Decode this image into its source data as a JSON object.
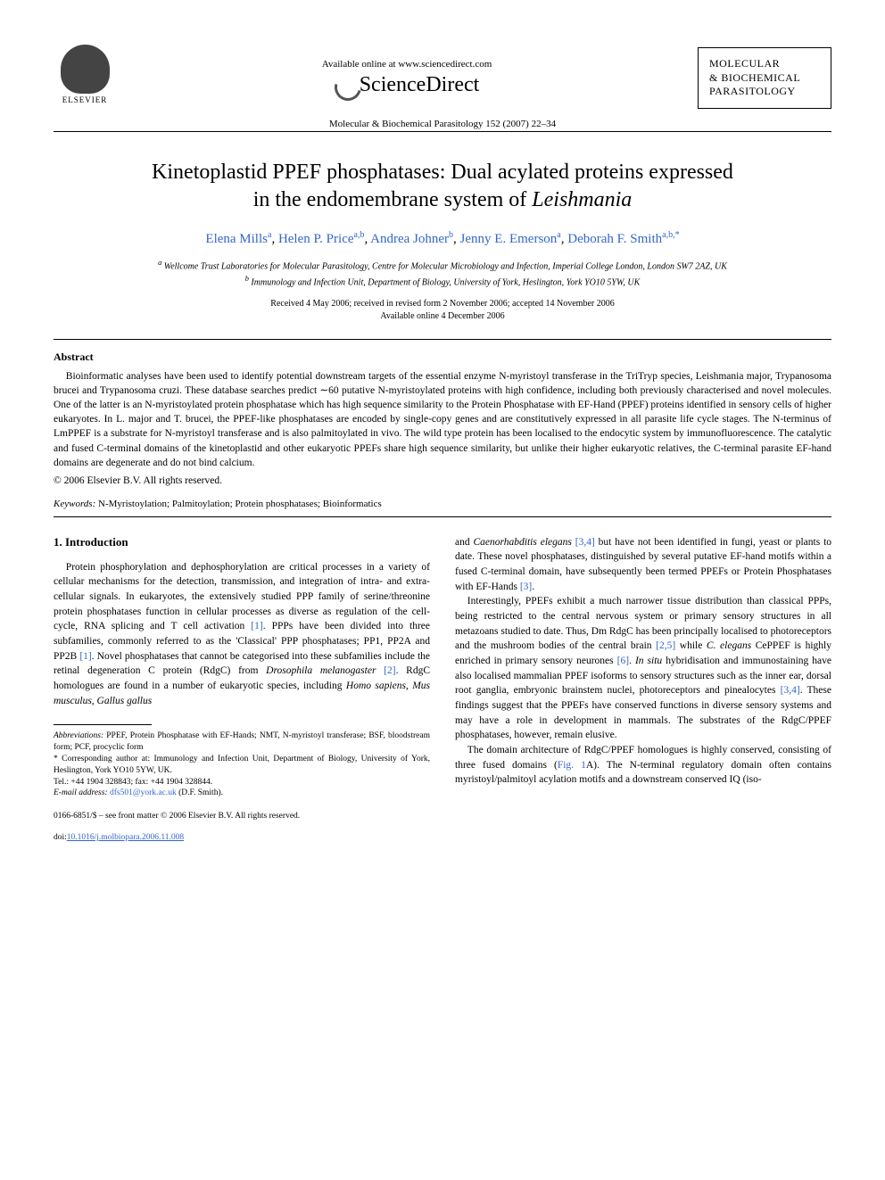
{
  "header": {
    "publisher_label": "ELSEVIER",
    "available_text": "Available online at www.sciencedirect.com",
    "sciencedirect": "ScienceDirect",
    "journal_box_line1": "MOLECULAR",
    "journal_box_line2": "& BIOCHEMICAL",
    "journal_box_line3": "PARASITOLOGY",
    "citation": "Molecular & Biochemical Parasitology 152 (2007) 22–34"
  },
  "article": {
    "title_line1": "Kinetoplastid PPEF phosphatases: Dual acylated proteins expressed",
    "title_line2": "in the endomembrane system of ",
    "title_line2_italic": "Leishmania",
    "authors": [
      {
        "name": "Elena Mills",
        "sup": "a"
      },
      {
        "name": "Helen P. Price",
        "sup": "a,b"
      },
      {
        "name": "Andrea Johner",
        "sup": "b"
      },
      {
        "name": "Jenny E. Emerson",
        "sup": "a"
      },
      {
        "name": "Deborah F. Smith",
        "sup": "a,b,*"
      }
    ],
    "affiliations": {
      "a": "Wellcome Trust Laboratories for Molecular Parasitology, Centre for Molecular Microbiology and Infection, Imperial College London, London SW7 2AZ, UK",
      "b": "Immunology and Infection Unit, Department of Biology, University of York, Heslington, York YO10 5YW, UK"
    },
    "dates_line1": "Received 4 May 2006; received in revised form 2 November 2006; accepted 14 November 2006",
    "dates_line2": "Available online 4 December 2006"
  },
  "abstract": {
    "heading": "Abstract",
    "text": "Bioinformatic analyses have been used to identify potential downstream targets of the essential enzyme N-myristoyl transferase in the TriTryp species, Leishmania major, Trypanosoma brucei and Trypanosoma cruzi. These database searches predict ∼60 putative N-myristoylated proteins with high confidence, including both previously characterised and novel molecules. One of the latter is an N-myristoylated protein phosphatase which has high sequence similarity to the Protein Phosphatase with EF-Hand (PPEF) proteins identified in sensory cells of higher eukaryotes. In L. major and T. brucei, the PPEF-like phosphatases are encoded by single-copy genes and are constitutively expressed in all parasite life cycle stages. The N-terminus of LmPPEF is a substrate for N-myristoyl transferase and is also palmitoylated in vivo. The wild type protein has been localised to the endocytic system by immunofluorescence. The catalytic and fused C-terminal domains of the kinetoplastid and other eukaryotic PPEFs share high sequence similarity, but unlike their higher eukaryotic relatives, the C-terminal parasite EF-hand domains are degenerate and do not bind calcium.",
    "copyright": "© 2006 Elsevier B.V. All rights reserved."
  },
  "keywords": {
    "label": "Keywords:",
    "text": " N-Myristoylation; Palmitoylation; Protein phosphatases; Bioinformatics"
  },
  "intro": {
    "heading": "1.  Introduction",
    "col1_p1a": "Protein phosphorylation and dephosphorylation are critical processes in a variety of cellular mechanisms for the detection, transmission, and integration of intra- and extra-cellular signals. In eukaryotes, the extensively studied PPP family of serine/threonine protein phosphatases function in cellular processes as diverse as regulation of the cell-cycle, RNA splicing and T cell activation ",
    "ref1": "[1]",
    "col1_p1b": ". PPPs have been divided into three subfamilies, commonly referred to as the 'Classical' PPP phosphatases; PP1, PP2A and PP2B ",
    "col1_p1c": ". Novel phosphatases that cannot be categorised into these subfamilies include the retinal degeneration C protein (RdgC) from ",
    "col1_p1c_italic": "Drosophila melanogaster",
    "ref2": "[2]",
    "col1_p1d": ". RdgC homologues are found in a number of eukaryotic species, including ",
    "col1_p1d_italic": "Homo sapiens, Mus musculus, Gallus gallus",
    "col2_p1a": "and ",
    "col2_p1a_italic": "Caenorhabditis elegans",
    "ref34": "[3,4]",
    "col2_p1b": " but have not been identified in fungi, yeast or plants to date. These novel phosphatases, distinguished by several putative EF-hand motifs within a fused C-terminal domain, have subsequently been termed PPEFs or Protein Phosphatases with EF-Hands ",
    "ref3": "[3]",
    "col2_p1c": ".",
    "col2_p2a": "Interestingly, PPEFs exhibit a much narrower tissue distribution than classical PPPs, being restricted to the central nervous system or primary sensory structures in all metazoans studied to date. Thus, Dm RdgC has been principally localised to photoreceptors and the mushroom bodies of the central brain ",
    "ref25": "[2,5]",
    "col2_p2b": " while ",
    "col2_p2b_italic": "C. elegans",
    "col2_p2c": " CePPEF is highly enriched in primary sensory neurones ",
    "ref6": "[6]",
    "col2_p2d": ". ",
    "col2_p2d_italic": "In situ",
    "col2_p2e": " hybridisation and immunostaining have also localised mammalian PPEF isoforms to sensory structures such as the inner ear, dorsal root ganglia, embryonic brainstem nuclei, photoreceptors and pinealocytes ",
    "col2_p2f": ". These findings suggest that the PPEFs have conserved functions in diverse sensory systems and may have a role in development in mammals. The substrates of the RdgC/PPEF phosphatases, however, remain elusive.",
    "col2_p3a": "The domain architecture of RdgC/PPEF homologues is highly conserved, consisting of three fused domains (",
    "fig1a": "Fig. 1",
    "col2_p3b": "A). The N-terminal regulatory domain often contains myristoyl/palmitoyl acylation motifs and a downstream conserved IQ (iso-"
  },
  "footnotes": {
    "abbrev_label": "Abbreviations:",
    "abbrev_text": " PPEF, Protein Phosphatase with EF-Hands; NMT, N-myristoyl transferase; BSF, bloodstream form; PCF, procyclic form",
    "corresp_star": "*",
    "corresp_text": " Corresponding author at: Immunology and Infection Unit, Department of Biology, University of York, Heslington, York YO10 5YW, UK.",
    "tel": "Tel.: +44 1904 328843; fax: +44 1904 328844.",
    "email_label": "E-mail address:",
    "email": "dfs501@york.ac.uk",
    "email_person": " (D.F. Smith)."
  },
  "footer": {
    "line1": "0166-6851/$ – see front matter © 2006 Elsevier B.V. All rights reserved.",
    "doi_label": "doi:",
    "doi": "10.1016/j.molbiopara.2006.11.008"
  }
}
